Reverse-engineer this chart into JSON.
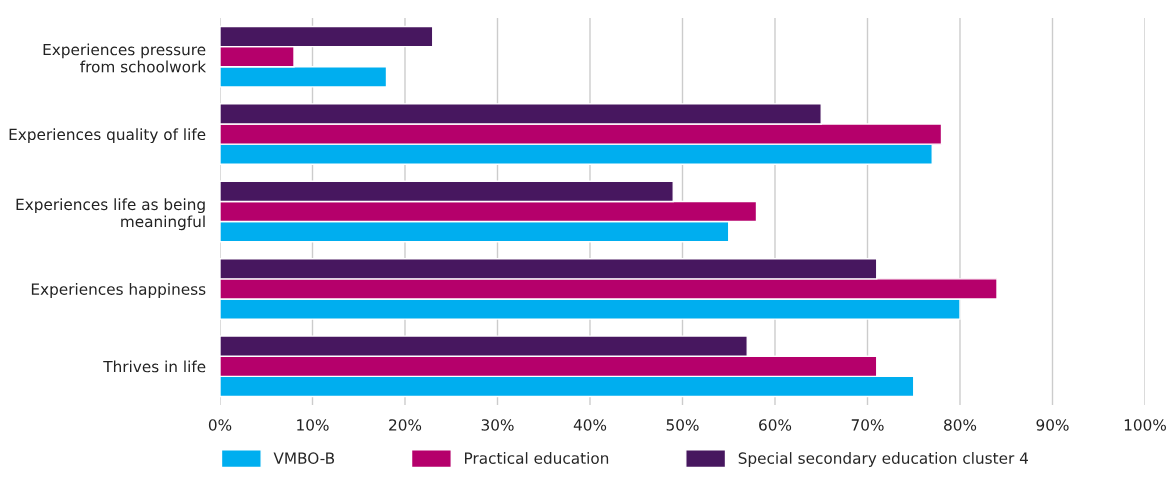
{
  "chart_data": {
    "type": "bar",
    "orientation": "horizontal",
    "categories": [
      "Experiences pressure\nfrom schoolwork",
      "Experiences quality of life",
      "Experiences life as being\nmeaningful",
      "Experiences happiness",
      "Thrives in life"
    ],
    "series": [
      {
        "name": "VMBO-B",
        "color": "#00aeef",
        "values": [
          18,
          77,
          55,
          80,
          75
        ]
      },
      {
        "name": "Practical education",
        "color": "#b5006b",
        "values": [
          8,
          78,
          58,
          84,
          71
        ]
      },
      {
        "name": "Special secondary education cluster 4",
        "color": "#47175f",
        "values": [
          23,
          65,
          49,
          71,
          57
        ]
      }
    ],
    "xlim": [
      0,
      100
    ],
    "xticks": [
      {
        "value": 0,
        "label": "0%"
      },
      {
        "value": 10,
        "label": "10%"
      },
      {
        "value": 20,
        "label": "20%"
      },
      {
        "value": 30,
        "label": "30%"
      },
      {
        "value": 40,
        "label": "40%"
      },
      {
        "value": 50,
        "label": "50%"
      },
      {
        "value": 60,
        "label": "60%"
      },
      {
        "value": 70,
        "label": "70%"
      },
      {
        "value": 80,
        "label": "80%"
      },
      {
        "value": 90,
        "label": "90%"
      },
      {
        "value": 100,
        "label": "100%"
      }
    ],
    "grid": "x",
    "legend": "bottom"
  }
}
